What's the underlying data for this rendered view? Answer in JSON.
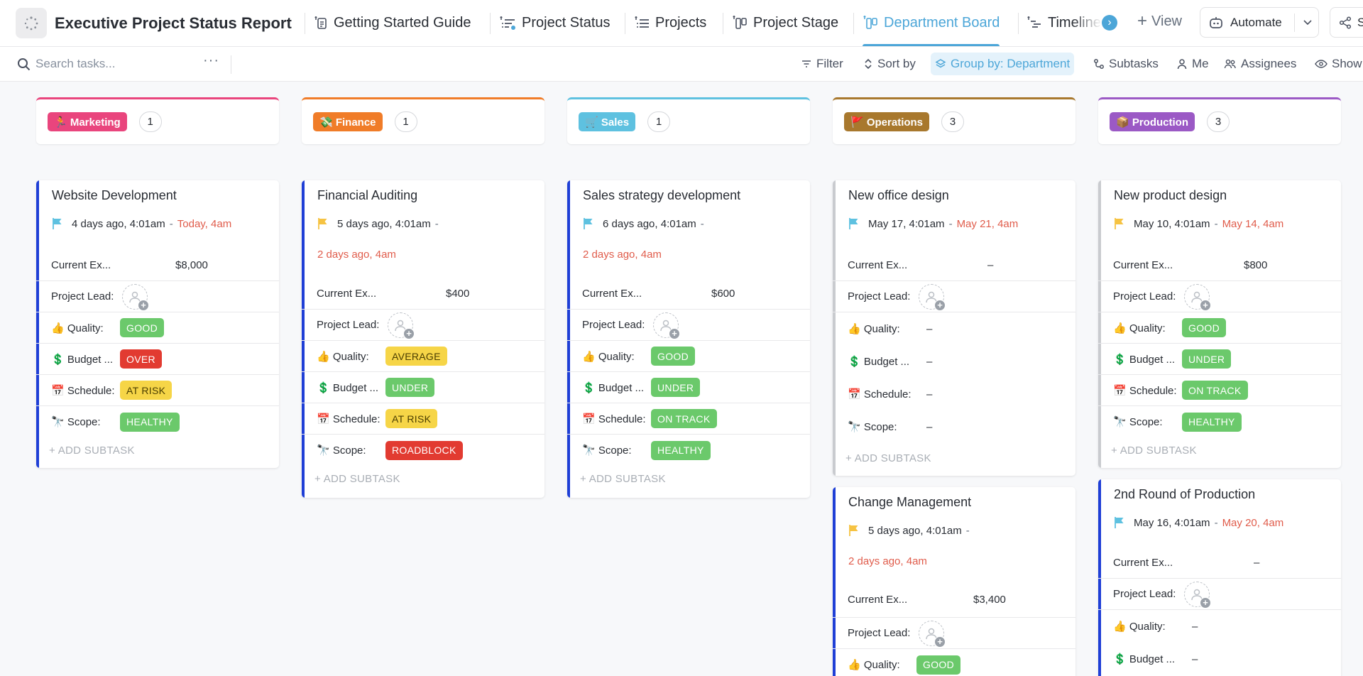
{
  "header": {
    "title": "Executive Project Status Report",
    "tabs": [
      {
        "label": "Getting Started Guide",
        "icon": "doc-icon"
      },
      {
        "label": "Project Status",
        "icon": "list-icon"
      },
      {
        "label": "Projects",
        "icon": "list-icon"
      },
      {
        "label": "Project Stage",
        "icon": "board-icon"
      },
      {
        "label": "Department Board",
        "icon": "board-icon",
        "active": true
      },
      {
        "label": "Timeline",
        "icon": "timeline-icon"
      }
    ],
    "add_view_label": "View",
    "automate_label": "Automate",
    "share_label": "Share"
  },
  "toolbar": {
    "search_placeholder": "Search tasks...",
    "more_label": "···",
    "filter_label": "Filter",
    "sort_label": "Sort by",
    "group_label": "Group by: Department",
    "subtasks_label": "Subtasks",
    "me_label": "Me",
    "assignees_label": "Assignees",
    "show_label": "Show"
  },
  "colors": {
    "accent": "#4ca6d8",
    "marketing": "#e9457d",
    "finance": "#f07c28",
    "sales": "#5ec1e0",
    "operations": "#a8782d",
    "production": "#9b59c5",
    "stripe_blue": "#1f3fd6",
    "stripe_gray": "#c9cbcf",
    "good": "#6bc96b",
    "over": "#e23b31",
    "at_risk": "#f6d547"
  },
  "field_labels": {
    "expense": "Current Ex...",
    "lead": "Project Lead:",
    "quality": "👍 Quality:",
    "budget": "💲 Budget ...",
    "schedule": "📅 Schedule:",
    "scope": "🔭 Scope:"
  },
  "add_subtask_label": "+ ADD SUBTASK",
  "columns": [
    {
      "name": "🏃 Marketing",
      "count": "1"
    },
    {
      "name": "💸 Finance",
      "count": "1"
    },
    {
      "name": "🛒 Sales",
      "count": "1"
    },
    {
      "name": "🚩 Operations",
      "count": "3"
    },
    {
      "name": "📦 Production",
      "count": "3"
    }
  ],
  "cards": {
    "website": {
      "title": "Website Development",
      "start": "4 days ago, 4:01am",
      "due": "Today, 4am",
      "expense": "$8,000",
      "quality": "GOOD",
      "budget": "OVER",
      "schedule": "AT RISK",
      "scope": "HEALTHY"
    },
    "auditing": {
      "title": "Financial Auditing",
      "start": "5 days ago, 4:01am",
      "due": "2 days ago, 4am",
      "expense": "$400",
      "quality": "AVERAGE",
      "budget": "UNDER",
      "schedule": "AT RISK",
      "scope": "ROADBLOCK"
    },
    "sales": {
      "title": "Sales strategy development",
      "start": "6 days ago, 4:01am",
      "due": "2 days ago, 4am",
      "expense": "$600",
      "quality": "GOOD",
      "budget": "UNDER",
      "schedule": "ON TRACK",
      "scope": "HEALTHY"
    },
    "office": {
      "title": "New office design",
      "start": "May 17, 4:01am",
      "due": "May 21, 4am",
      "expense": "–",
      "quality": "–",
      "budget": "–",
      "schedule": "–",
      "scope": "–"
    },
    "change": {
      "title": "Change Management",
      "start": "5 days ago, 4:01am",
      "due": "2 days ago, 4am",
      "expense": "$3,400",
      "quality": "GOOD"
    },
    "product": {
      "title": "New product design",
      "start": "May 10, 4:01am",
      "due": "May 14, 4am",
      "expense": "$800",
      "quality": "GOOD",
      "budget": "UNDER",
      "schedule": "ON TRACK",
      "scope": "HEALTHY"
    },
    "round2": {
      "title": "2nd Round of Production",
      "start": "May 16, 4:01am",
      "due": "May 20, 4am",
      "expense": "–",
      "quality": "–",
      "budget": "–"
    }
  }
}
